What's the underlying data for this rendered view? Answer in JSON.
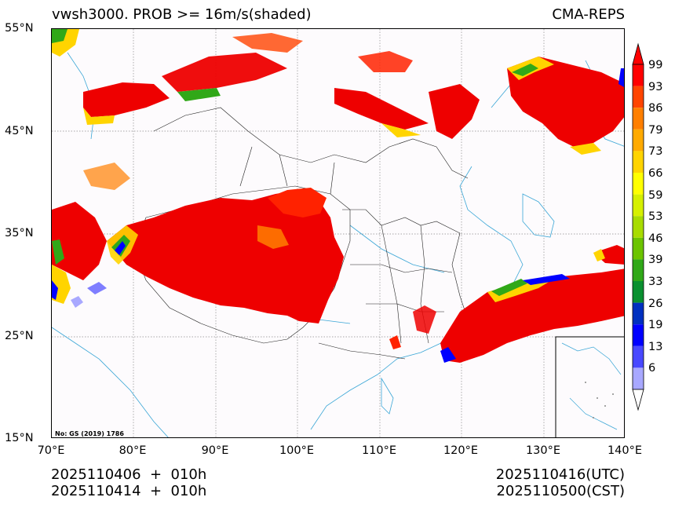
{
  "title": {
    "left": "vwsh3000. PROB >= 16m/s(shaded)",
    "right": "CMA-REPS"
  },
  "axes": {
    "lat_labels": [
      "55°N",
      "45°N",
      "35°N",
      "25°N",
      "15°N"
    ],
    "lon_labels": [
      "70°E",
      "80°E",
      "90°E",
      "100°E",
      "110°E",
      "120°E",
      "130°E",
      "140°E"
    ],
    "lat_values": [
      55,
      45,
      35,
      25,
      15
    ],
    "lon_values": [
      70,
      80,
      90,
      100,
      110,
      120,
      130,
      140
    ],
    "lat_range": [
      15,
      55
    ],
    "lon_range": [
      70,
      140
    ],
    "gridlines": "dotted"
  },
  "colorbar": {
    "labels": [
      "99",
      "93",
      "86",
      "79",
      "73",
      "66",
      "59",
      "53",
      "46",
      "39",
      "33",
      "26",
      "19",
      "13",
      "6"
    ],
    "colors": [
      "#ff0000",
      "#ff4400",
      "#ff7f00",
      "#ffaa00",
      "#ffd400",
      "#ffff00",
      "#d6f000",
      "#a8dc00",
      "#6cc400",
      "#30a818",
      "#0a9030",
      "#0030c0",
      "#0000ff",
      "#4848ff",
      "#a8a8ff"
    ],
    "extend": "both"
  },
  "map_note": "No: GS (2019) 1786",
  "footer": {
    "left_line1": "2025110406  +  010h",
    "left_line2": "2025110414  +  010h",
    "right_line1": "2025110416(UTC)",
    "right_line2": "2025110500(CST)"
  }
}
